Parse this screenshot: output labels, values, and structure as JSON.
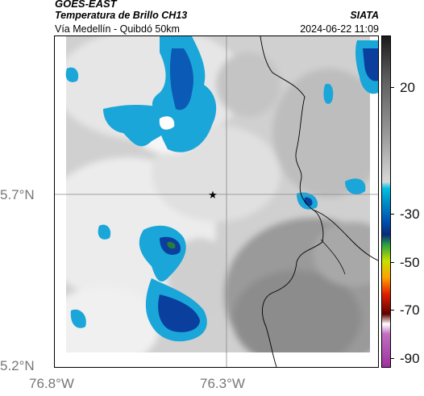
{
  "header": {
    "title": "GOES-EAST",
    "subtitle": "Temperatura de Brillo CH13",
    "route": "Vía Medellín - Quibdó 50km",
    "agency": "SIATA",
    "datetime": "2024-06-22 11:09"
  },
  "map": {
    "lat_labels": [
      "5.7°N",
      "5.2°N"
    ],
    "lon_labels": [
      "76.8°W",
      "76.3°W"
    ],
    "marker_icon": "star-icon",
    "colors": {
      "cloud_white": "#f2f2f2",
      "clear_gray": "#8a8a8a",
      "cold_cyan": "#1aa6d8",
      "cold_blue": "#0b3f9e",
      "coldest_green": "#2a7a3a",
      "border": "#000000"
    }
  },
  "colorbar": {
    "ticks": [
      "20",
      "-30",
      "-50",
      "-70",
      "-90"
    ],
    "stops": [
      "#1a1a1a",
      "#5a5a5a",
      "#9a9a9a",
      "#d8d8d8",
      "#00c0e0",
      "#0090c8",
      "#0050b0",
      "#0a2a7a",
      "#2aa040",
      "#c8e000",
      "#ffa000",
      "#e02000",
      "#600000",
      "#ffffff",
      "#c070c0",
      "#a030a0"
    ]
  }
}
